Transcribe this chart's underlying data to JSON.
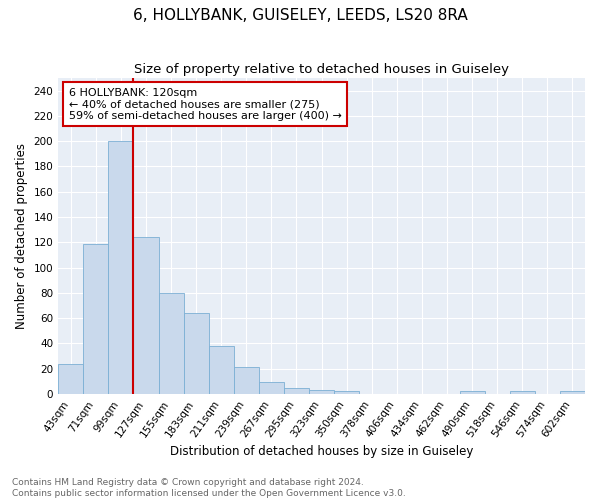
{
  "title1": "6, HOLLYBANK, GUISELEY, LEEDS, LS20 8RA",
  "title2": "Size of property relative to detached houses in Guiseley",
  "xlabel": "Distribution of detached houses by size in Guiseley",
  "ylabel": "Number of detached properties",
  "bin_labels": [
    "43sqm",
    "71sqm",
    "99sqm",
    "127sqm",
    "155sqm",
    "183sqm",
    "211sqm",
    "239sqm",
    "267sqm",
    "295sqm",
    "323sqm",
    "350sqm",
    "378sqm",
    "406sqm",
    "434sqm",
    "462sqm",
    "490sqm",
    "518sqm",
    "546sqm",
    "574sqm",
    "602sqm"
  ],
  "bar_values": [
    24,
    119,
    200,
    124,
    80,
    64,
    38,
    21,
    9,
    5,
    3,
    2,
    0,
    0,
    0,
    0,
    2,
    0,
    2,
    0,
    2
  ],
  "bar_color": "#c9d9ec",
  "bar_edge_color": "#7bafd4",
  "red_line_index": 3,
  "annotation_text": "6 HOLLYBANK: 120sqm\n← 40% of detached houses are smaller (275)\n59% of semi-detached houses are larger (400) →",
  "annotation_box_color": "#ffffff",
  "annotation_box_edge": "#cc0000",
  "red_line_color": "#cc0000",
  "ylim": [
    0,
    250
  ],
  "yticks": [
    0,
    20,
    40,
    60,
    80,
    100,
    120,
    140,
    160,
    180,
    200,
    220,
    240
  ],
  "background_color": "#e8eef6",
  "footer_text": "Contains HM Land Registry data © Crown copyright and database right 2024.\nContains public sector information licensed under the Open Government Licence v3.0.",
  "title1_fontsize": 11,
  "title2_fontsize": 9.5,
  "xlabel_fontsize": 8.5,
  "ylabel_fontsize": 8.5,
  "tick_fontsize": 7.5,
  "annotation_fontsize": 8,
  "footer_fontsize": 6.5
}
